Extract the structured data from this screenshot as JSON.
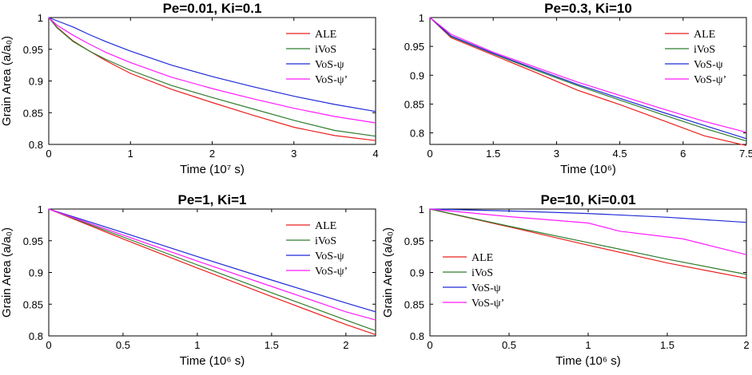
{
  "colors": {
    "ALE": "#e8201e",
    "iVoS": "#2e7d2e",
    "VoS-psi": "#1f2bd6",
    "VoS-psi-prime": "#ff1aff"
  },
  "chart_data": [
    {
      "type": "line",
      "title": "Pe=0.01, Ki=0.1",
      "xlabel": "Time (10⁷ s)",
      "ylabel": "Grain Area (a/a₀)",
      "xlim": [
        0,
        4
      ],
      "ylim": [
        0.8,
        1
      ],
      "xticks": [
        0,
        1,
        2,
        3,
        4
      ],
      "xtick_labels": [
        "0",
        "1",
        "2",
        "3",
        "4"
      ],
      "yticks": [
        0.8,
        0.85,
        0.9,
        0.95,
        1
      ],
      "ytick_labels": [
        "0.8",
        "0.85",
        "0.9",
        "0.95",
        "1"
      ],
      "legend_position": "top-right",
      "series": [
        {
          "name": "ALE",
          "color_key": "ALE",
          "x": [
            0,
            0.1,
            0.3,
            0.5,
            0.7,
            1,
            1.5,
            2,
            2.5,
            3,
            3.5,
            4
          ],
          "y": [
            1,
            0.985,
            0.963,
            0.947,
            0.932,
            0.912,
            0.887,
            0.866,
            0.846,
            0.827,
            0.814,
            0.806
          ]
        },
        {
          "name": "iVoS",
          "color_key": "iVoS",
          "x": [
            0,
            0.1,
            0.3,
            0.5,
            0.7,
            1,
            1.5,
            2,
            2.5,
            3,
            3.5,
            4
          ],
          "y": [
            1,
            0.984,
            0.962,
            0.947,
            0.934,
            0.917,
            0.893,
            0.874,
            0.856,
            0.838,
            0.822,
            0.813
          ]
        },
        {
          "name": "VoS-ψ",
          "color_key": "VoS-psi",
          "x": [
            0,
            0.1,
            0.3,
            0.5,
            0.7,
            1,
            1.5,
            2,
            2.5,
            3,
            3.5,
            4
          ],
          "y": [
            1,
            0.995,
            0.985,
            0.973,
            0.962,
            0.947,
            0.925,
            0.907,
            0.891,
            0.876,
            0.863,
            0.852
          ]
        },
        {
          "name": "VoS-ψ’",
          "color_key": "VoS-psi-prime",
          "x": [
            0,
            0.1,
            0.3,
            0.5,
            0.7,
            1,
            1.5,
            2,
            2.5,
            3,
            3.5,
            4
          ],
          "y": [
            1,
            0.988,
            0.972,
            0.958,
            0.945,
            0.929,
            0.906,
            0.888,
            0.872,
            0.857,
            0.844,
            0.834
          ]
        }
      ]
    },
    {
      "type": "line",
      "title": "Pe=0.3, Ki=10",
      "xlabel": "Time (10⁶)",
      "ylabel": "",
      "xlim": [
        0,
        7.5
      ],
      "ylim": [
        0.78,
        1
      ],
      "xticks": [
        0,
        1.5,
        3,
        4.5,
        6,
        7.5
      ],
      "xtick_labels": [
        "0",
        "1.5",
        "3",
        "4.5",
        "6",
        "7.5"
      ],
      "yticks": [
        0.8,
        0.85,
        0.9,
        0.95,
        1
      ],
      "ytick_labels": [
        "0.8",
        "0.85",
        "0.9",
        "0.95",
        "1"
      ],
      "legend_position": "top-right",
      "series": [
        {
          "name": "ALE",
          "color_key": "ALE",
          "x": [
            0,
            0.5,
            1.5,
            2.5,
            3.5,
            4.5,
            5.5,
            6.5,
            7.5
          ],
          "y": [
            1,
            0.965,
            0.935,
            0.905,
            0.874,
            0.849,
            0.822,
            0.795,
            0.778
          ]
        },
        {
          "name": "iVoS",
          "color_key": "iVoS",
          "x": [
            0,
            0.5,
            1.5,
            2.5,
            3.5,
            4.5,
            5.5,
            6.5,
            7.5
          ],
          "y": [
            1,
            0.967,
            0.937,
            0.909,
            0.882,
            0.857,
            0.832,
            0.808,
            0.786
          ]
        },
        {
          "name": "VoS-ψ",
          "color_key": "VoS-psi",
          "x": [
            0,
            0.5,
            1.5,
            2.5,
            3.5,
            4.5,
            5.5,
            6.5,
            7.5
          ],
          "y": [
            1,
            0.968,
            0.938,
            0.911,
            0.884,
            0.86,
            0.836,
            0.813,
            0.79
          ]
        },
        {
          "name": "VoS-ψ’",
          "color_key": "VoS-psi-prime",
          "x": [
            0,
            0.5,
            1.5,
            2.5,
            3.5,
            4.5,
            5.5,
            6.5,
            7.5
          ],
          "y": [
            1,
            0.971,
            0.94,
            0.914,
            0.888,
            0.865,
            0.842,
            0.82,
            0.801
          ]
        }
      ]
    },
    {
      "type": "line",
      "title": "Pe=1, Ki=1",
      "xlabel": "Time (10⁶ s)",
      "ylabel": "Grain Area (a/a₀)",
      "xlim": [
        0,
        2.2
      ],
      "ylim": [
        0.8,
        1
      ],
      "xticks": [
        0,
        0.5,
        1,
        1.5,
        2
      ],
      "xtick_labels": [
        "0",
        "0.5",
        "1",
        "1.5",
        "2"
      ],
      "yticks": [
        0.8,
        0.85,
        0.9,
        0.95,
        1
      ],
      "ytick_labels": [
        "0.8",
        "0.85",
        "0.9",
        "0.95",
        "1"
      ],
      "legend_position": "top-right",
      "series": [
        {
          "name": "ALE",
          "color_key": "ALE",
          "x": [
            0,
            0.5,
            1,
            1.5,
            2,
            2.2
          ],
          "y": [
            1,
            0.953,
            0.907,
            0.862,
            0.818,
            0.802
          ]
        },
        {
          "name": "iVoS",
          "color_key": "iVoS",
          "x": [
            0,
            0.5,
            1,
            1.5,
            2,
            2.2
          ],
          "y": [
            1,
            0.956,
            0.912,
            0.868,
            0.825,
            0.808
          ]
        },
        {
          "name": "VoS-ψ",
          "color_key": "VoS-psi",
          "x": [
            0,
            0.5,
            1,
            1.5,
            2,
            2.2
          ],
          "y": [
            1,
            0.963,
            0.925,
            0.888,
            0.852,
            0.838
          ]
        },
        {
          "name": "VoS-ψ’",
          "color_key": "VoS-psi-prime",
          "x": [
            0,
            0.5,
            1,
            1.5,
            2,
            2.2
          ],
          "y": [
            1,
            0.959,
            0.918,
            0.878,
            0.838,
            0.825
          ]
        }
      ]
    },
    {
      "type": "line",
      "title": "Pe=10, Ki=0.01",
      "xlabel": "Time (10⁶ s)",
      "ylabel": "Grain Area (a/a₀)",
      "xlim": [
        0,
        2
      ],
      "ylim": [
        0.8,
        1
      ],
      "xticks": [
        0,
        0.5,
        1,
        1.5,
        2
      ],
      "xtick_labels": [
        "0",
        "0.5",
        "1",
        "1.5",
        "2"
      ],
      "yticks": [
        0.8,
        0.85,
        0.9,
        0.95,
        1
      ],
      "ytick_labels": [
        "0.8",
        "0.85",
        "0.9",
        "0.95",
        "1"
      ],
      "legend_position": "bottom-left",
      "series": [
        {
          "name": "ALE",
          "color_key": "ALE",
          "x": [
            0,
            0.5,
            1,
            1.5,
            2
          ],
          "y": [
            1,
            0.972,
            0.943,
            0.915,
            0.891
          ]
        },
        {
          "name": "iVoS",
          "color_key": "iVoS",
          "x": [
            0,
            0.5,
            1,
            1.5,
            2
          ],
          "y": [
            1,
            0.973,
            0.947,
            0.921,
            0.897
          ]
        },
        {
          "name": "VoS-ψ",
          "color_key": "VoS-psi",
          "x": [
            0,
            0.5,
            1,
            1.5,
            2
          ],
          "y": [
            1,
            0.997,
            0.993,
            0.987,
            0.979
          ]
        },
        {
          "name": "VoS-ψ’",
          "color_key": "VoS-psi-prime",
          "x": [
            0,
            0.5,
            1,
            1.2,
            1.6,
            2
          ],
          "y": [
            1,
            0.988,
            0.978,
            0.965,
            0.953,
            0.928
          ]
        }
      ]
    }
  ]
}
